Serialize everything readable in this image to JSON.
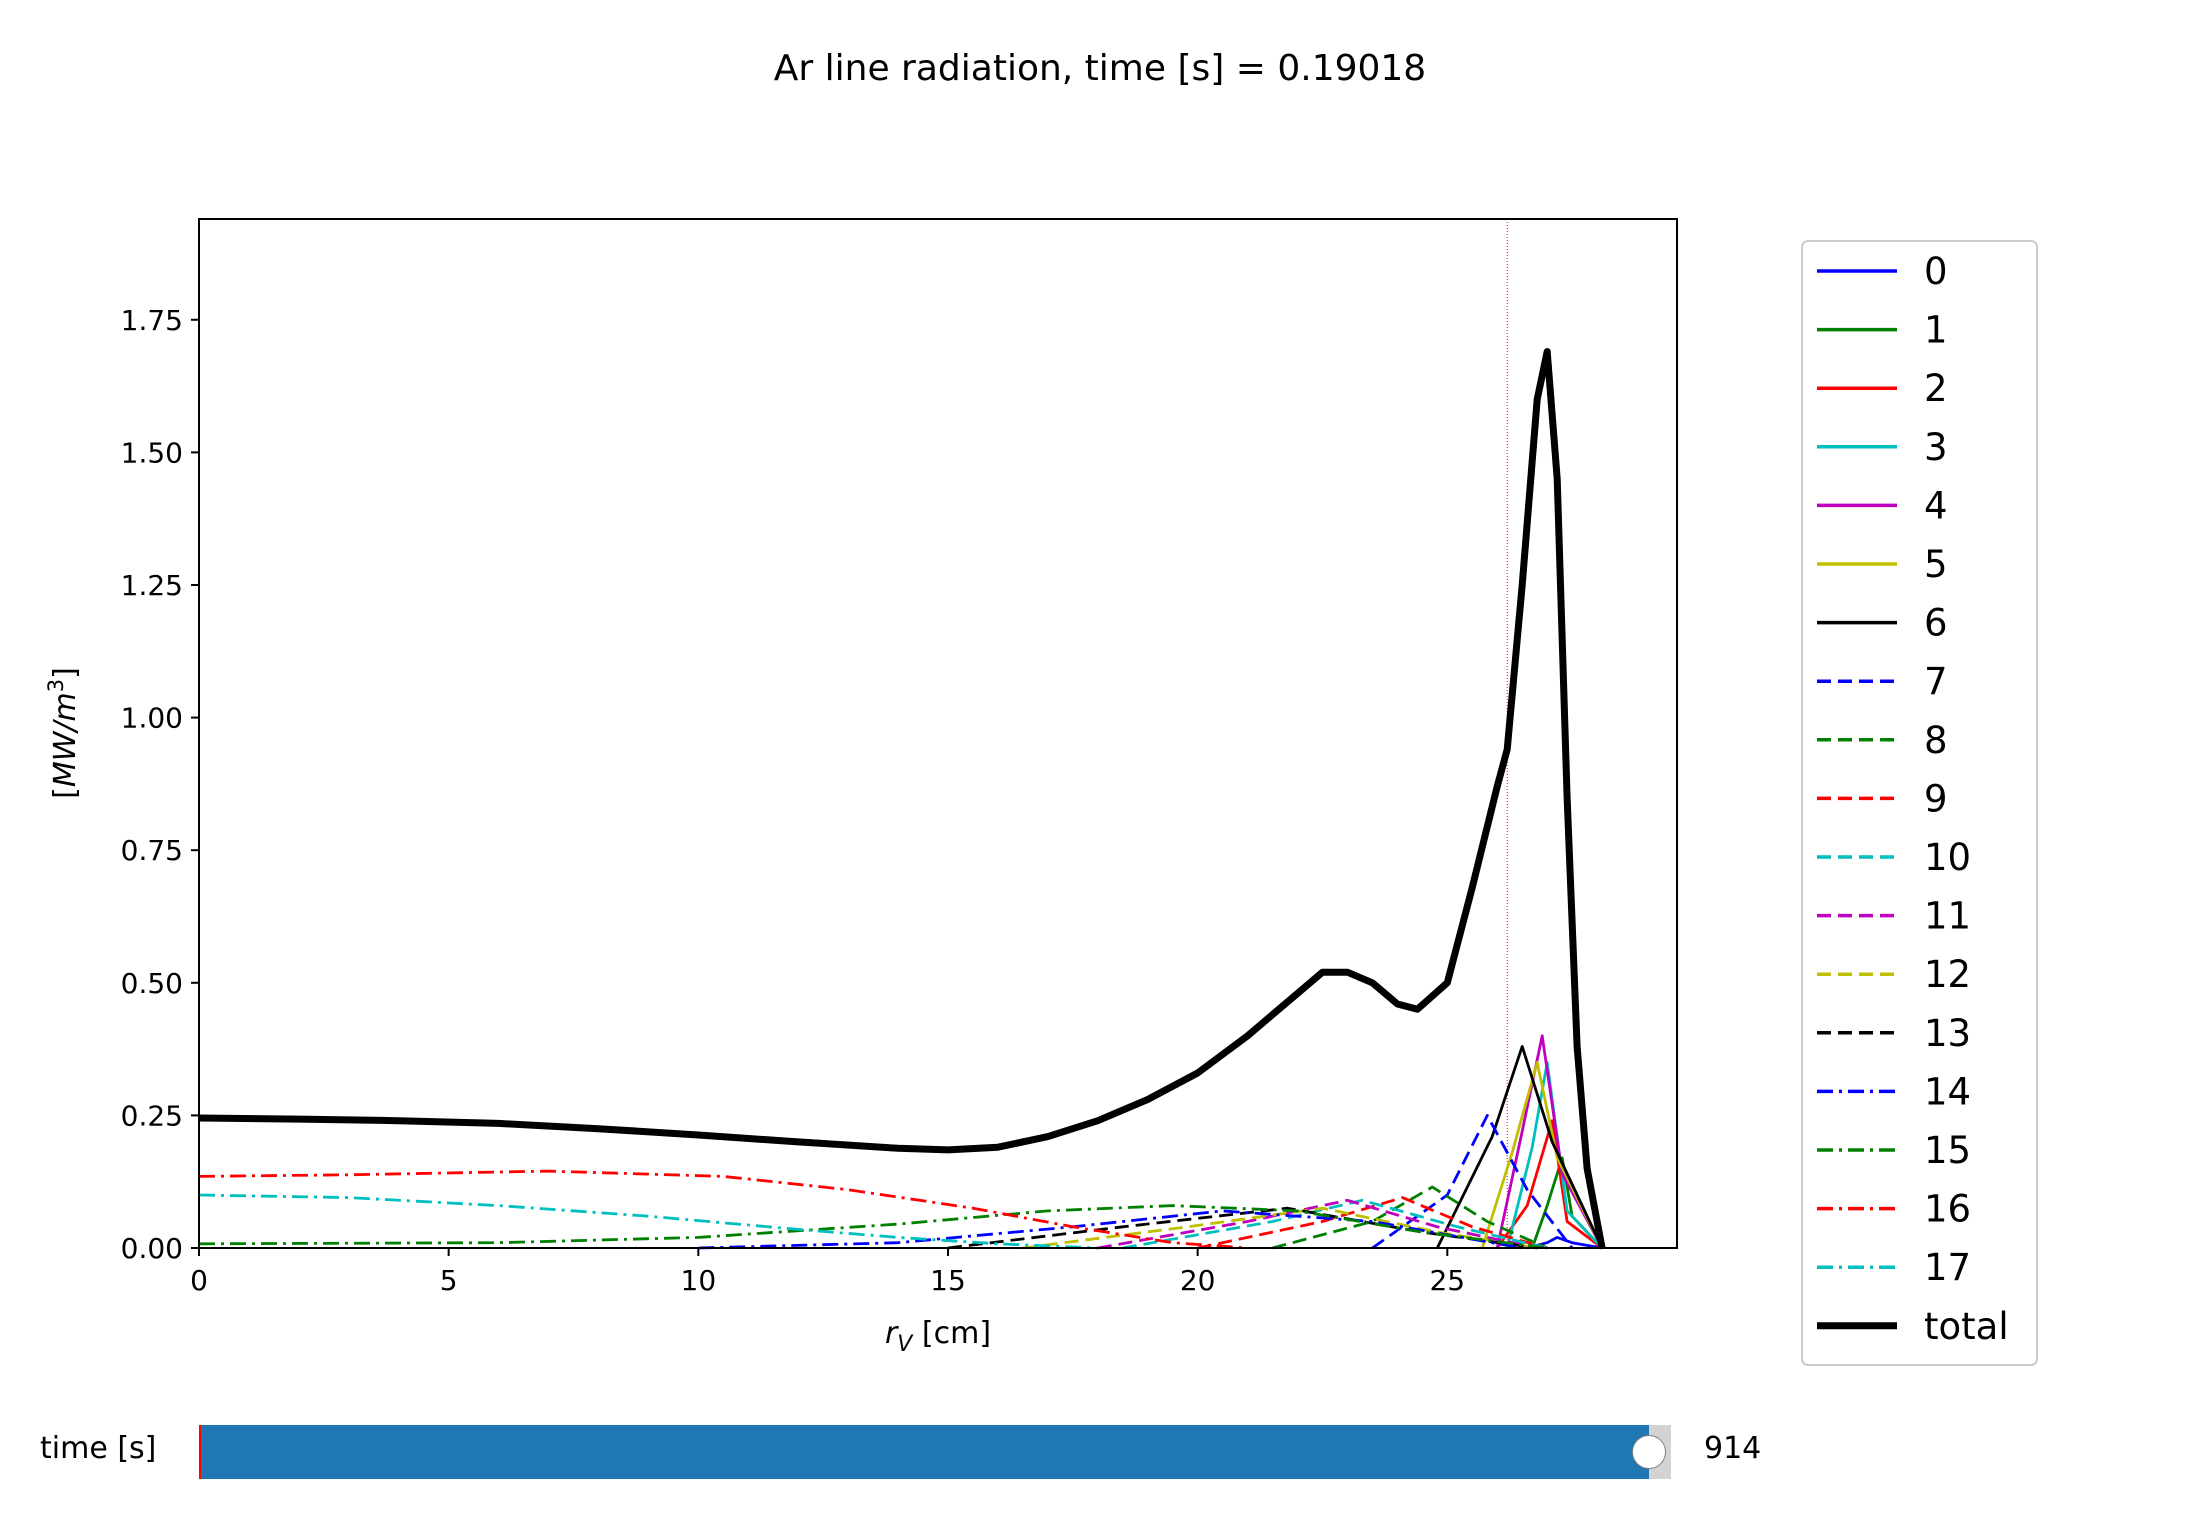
{
  "chart_data": {
    "type": "line",
    "title": "Ar line radiation, time [s] = 0.19018",
    "xlabel": "r_V [cm]",
    "ylabel": "[MW/m^3]",
    "xlim": [
      0,
      29.6
    ],
    "ylim": [
      0,
      1.94
    ],
    "xticks": [
      "0",
      "5",
      "10",
      "15",
      "20",
      "25"
    ],
    "yticks": [
      "0.00",
      "0.25",
      "0.50",
      "0.75",
      "1.00",
      "1.25",
      "1.50",
      "1.75"
    ],
    "grid": false,
    "legend_position": "right-outside",
    "vline": {
      "x": 26.2,
      "color": "#ff0000"
    },
    "series": [
      {
        "name": "0",
        "color": "#0000ff",
        "style": "solid",
        "x": [
          26.6,
          27.0,
          27.2,
          27.5,
          28.1
        ],
        "y": [
          0.0,
          0.01,
          0.02,
          0.01,
          0.0
        ]
      },
      {
        "name": "1",
        "color": "#008000",
        "style": "solid",
        "x": [
          26.7,
          27.0,
          27.3,
          27.5,
          28.1
        ],
        "y": [
          0.0,
          0.08,
          0.17,
          0.06,
          0.0
        ]
      },
      {
        "name": "2",
        "color": "#ff0000",
        "style": "solid",
        "x": [
          26.0,
          26.6,
          27.1,
          27.4,
          28.1
        ],
        "y": [
          0.0,
          0.08,
          0.24,
          0.05,
          0.0
        ]
      },
      {
        "name": "3",
        "color": "#00bfbf",
        "style": "solid",
        "x": [
          26.2,
          26.7,
          27.0,
          27.4,
          28.1
        ],
        "y": [
          0.0,
          0.19,
          0.35,
          0.07,
          0.0
        ]
      },
      {
        "name": "4",
        "color": "#bf00bf",
        "style": "solid",
        "x": [
          26.0,
          26.5,
          26.9,
          27.3,
          28.1
        ],
        "y": [
          0.0,
          0.22,
          0.4,
          0.14,
          0.0
        ]
      },
      {
        "name": "5",
        "color": "#bfbf00",
        "style": "solid",
        "x": [
          25.7,
          26.3,
          26.8,
          27.2,
          28.1
        ],
        "y": [
          0.0,
          0.18,
          0.35,
          0.17,
          0.0
        ]
      },
      {
        "name": "6",
        "color": "#000000",
        "style": "solid",
        "x": [
          24.8,
          25.9,
          26.5,
          27.1,
          28.1
        ],
        "y": [
          0.0,
          0.21,
          0.38,
          0.2,
          0.0
        ]
      },
      {
        "name": "7",
        "color": "#0000ff",
        "style": "dashed",
        "x": [
          23.5,
          25.0,
          25.8,
          26.6,
          27.5
        ],
        "y": [
          0.0,
          0.1,
          0.25,
          0.11,
          0.0
        ]
      },
      {
        "name": "8",
        "color": "#008000",
        "style": "dashed",
        "x": [
          21.5,
          23.5,
          24.7,
          25.8,
          27.0
        ],
        "y": [
          0.0,
          0.05,
          0.115,
          0.05,
          0.0
        ]
      },
      {
        "name": "9",
        "color": "#ff0000",
        "style": "dashed",
        "x": [
          20.0,
          22.5,
          24.1,
          25.5,
          27.0
        ],
        "y": [
          0.0,
          0.05,
          0.095,
          0.04,
          0.0
        ]
      },
      {
        "name": "10",
        "color": "#00bfbf",
        "style": "dashed",
        "x": [
          18.5,
          21.5,
          23.3,
          25.2,
          27.0
        ],
        "y": [
          0.0,
          0.05,
          0.09,
          0.04,
          0.0
        ]
      },
      {
        "name": "11",
        "color": "#bf00bf",
        "style": "dashed",
        "x": [
          18.0,
          21.0,
          23.0,
          24.8,
          26.8
        ],
        "y": [
          0.0,
          0.05,
          0.09,
          0.04,
          0.0
        ]
      },
      {
        "name": "12",
        "color": "#bfbf00",
        "style": "dashed",
        "x": [
          16.5,
          19.8,
          22.5,
          24.8,
          26.8
        ],
        "y": [
          0.0,
          0.04,
          0.075,
          0.03,
          0.0
        ]
      },
      {
        "name": "13",
        "color": "#000000",
        "style": "dashed",
        "x": [
          15.0,
          18.5,
          21.8,
          24.5,
          26.8
        ],
        "y": [
          0.0,
          0.04,
          0.075,
          0.03,
          0.0
        ]
      },
      {
        "name": "14",
        "color": "#0000ff",
        "style": "dashdot",
        "x": [
          10.0,
          14.0,
          17.5,
          20.5,
          23.5,
          26.5
        ],
        "y": [
          0.0,
          0.01,
          0.04,
          0.07,
          0.05,
          0.0
        ]
      },
      {
        "name": "15",
        "color": "#008000",
        "style": "dashdot",
        "x": [
          0,
          6.0,
          10.0,
          14.0,
          17.0,
          19.5,
          22.0,
          24.5,
          27.0
        ],
        "y": [
          0.008,
          0.01,
          0.02,
          0.045,
          0.07,
          0.08,
          0.07,
          0.03,
          0.0
        ]
      },
      {
        "name": "16",
        "color": "#ff0000",
        "style": "dashdot",
        "x": [
          0,
          3.0,
          7.0,
          10.5,
          13.0,
          15.5,
          17.5,
          19.5,
          21.0
        ],
        "y": [
          0.135,
          0.138,
          0.145,
          0.135,
          0.11,
          0.075,
          0.04,
          0.01,
          0.0
        ]
      },
      {
        "name": "17",
        "color": "#00bfbf",
        "style": "dashdot",
        "x": [
          0,
          3.0,
          6.0,
          9.0,
          12.0,
          14.0,
          16.0,
          18.0
        ],
        "y": [
          0.1,
          0.095,
          0.08,
          0.06,
          0.035,
          0.02,
          0.008,
          0.0
        ]
      },
      {
        "name": "total",
        "color": "#000000",
        "style": "solid",
        "width": 3,
        "x": [
          0,
          2,
          4,
          6,
          8,
          10,
          12,
          14,
          15,
          16,
          17,
          18,
          19,
          20,
          21,
          22,
          22.5,
          23,
          23.5,
          24,
          24.4,
          25,
          25.5,
          26,
          26.2,
          26.5,
          26.8,
          27.0,
          27.2,
          27.4,
          27.6,
          27.8,
          28.1
        ],
        "y": [
          0.245,
          0.243,
          0.24,
          0.235,
          0.225,
          0.213,
          0.2,
          0.188,
          0.185,
          0.19,
          0.21,
          0.24,
          0.28,
          0.33,
          0.4,
          0.48,
          0.52,
          0.52,
          0.5,
          0.46,
          0.45,
          0.5,
          0.68,
          0.87,
          0.94,
          1.25,
          1.6,
          1.69,
          1.45,
          0.85,
          0.38,
          0.15,
          0.0
        ]
      }
    ]
  },
  "slider": {
    "label": "time [s]",
    "value_text": "914",
    "fraction": 0.985
  }
}
